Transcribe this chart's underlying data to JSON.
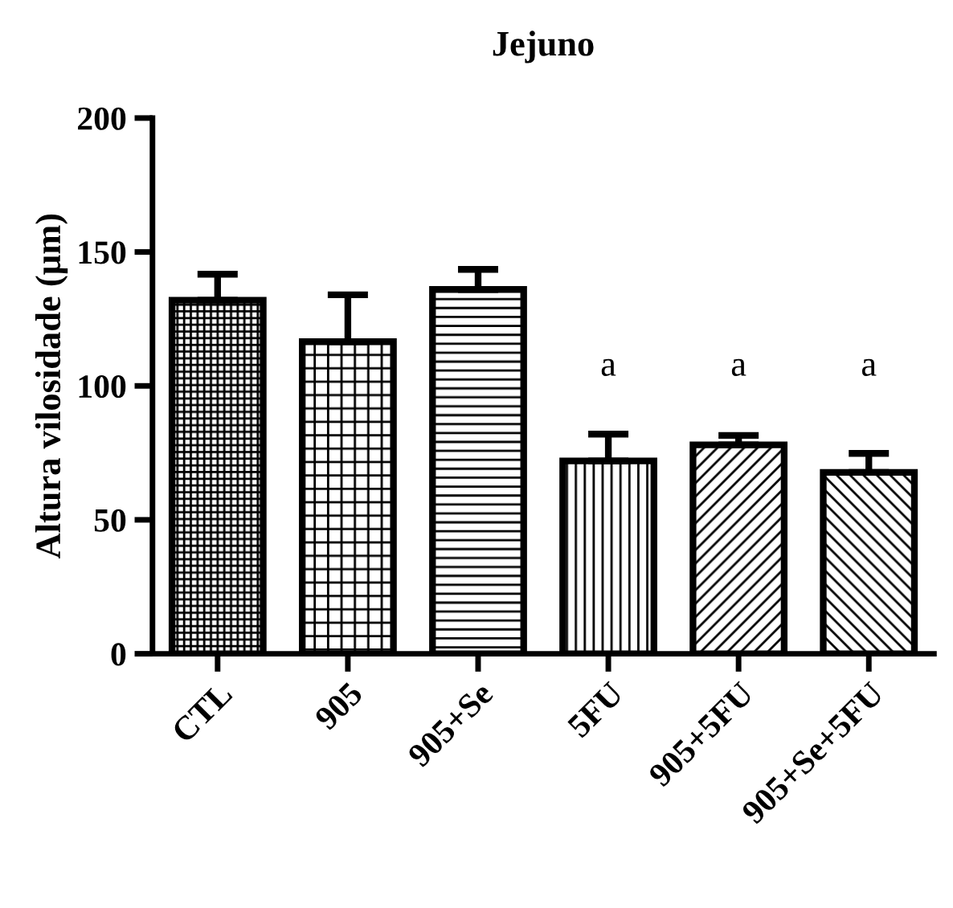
{
  "chart_data": {
    "type": "bar",
    "title": "Jejuno",
    "ylabel": "Altura vilosidade (µm)",
    "categories": [
      "CTL",
      "905",
      "905+Se",
      "5FU",
      "905+5FU",
      "905+Se+5FU"
    ],
    "values": [
      132,
      116.5,
      136,
      72,
      78,
      67.7
    ],
    "errors": [
      [
        132,
        141.7
      ],
      [
        116.5,
        134
      ],
      [
        136,
        143.5
      ],
      [
        72,
        82
      ],
      [
        78,
        81.5
      ],
      [
        67.7,
        74.8
      ]
    ],
    "colors": [
      "#000000",
      "#000000",
      "#000000",
      "#000000",
      "#000000",
      "#000000"
    ],
    "ylim": [
      0,
      200
    ],
    "yticks": [
      0,
      50,
      100,
      150,
      200
    ],
    "grid": false,
    "legend": false,
    "annotations": [
      "a",
      "a",
      "a"
    ]
  }
}
